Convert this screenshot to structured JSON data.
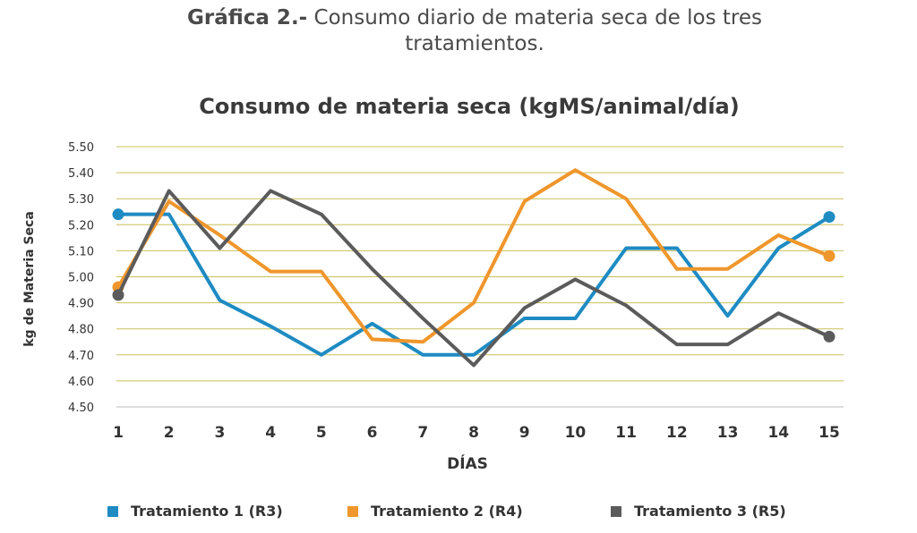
{
  "figure_caption": {
    "label": "Gráfica 2.-",
    "text": "Consumo diario de materia seca de los tres tratamientos."
  },
  "chart_data": {
    "type": "line",
    "title": "Consumo de materia seca (kgMS/animal/día)",
    "xlabel": "DÍAS",
    "ylabel": "kg de Materia Seca",
    "categories": [
      "1",
      "2",
      "3",
      "4",
      "5",
      "6",
      "7",
      "8",
      "9",
      "10",
      "11",
      "12",
      "13",
      "14",
      "15"
    ],
    "ylim": [
      4.5,
      5.5
    ],
    "yticks": [
      "4.50",
      "4.60",
      "4.70",
      "4.80",
      "4.90",
      "5.00",
      "5.10",
      "5.20",
      "5.30",
      "5.40",
      "5.50"
    ],
    "grid": true,
    "legend_position": "bottom",
    "series": [
      {
        "name": "Tratamiento 1 (R3)",
        "color": "#1e8bc3",
        "values": [
          5.24,
          5.24,
          4.91,
          4.81,
          4.7,
          4.82,
          4.7,
          4.7,
          4.84,
          4.84,
          5.11,
          5.11,
          4.85,
          5.11,
          5.23
        ]
      },
      {
        "name": "Tratamiento 2 (R4)",
        "color": "#ef962c",
        "values": [
          4.96,
          5.29,
          5.16,
          5.02,
          5.02,
          4.76,
          4.75,
          4.9,
          5.29,
          5.41,
          5.3,
          5.03,
          5.03,
          5.16,
          5.08
        ]
      },
      {
        "name": "Tratamiento 3 (R5)",
        "color": "#5b5b5b",
        "values": [
          4.93,
          5.33,
          5.11,
          5.33,
          5.24,
          5.03,
          4.84,
          4.66,
          4.88,
          4.99,
          4.89,
          4.74,
          4.74,
          4.86,
          4.77
        ]
      }
    ]
  }
}
